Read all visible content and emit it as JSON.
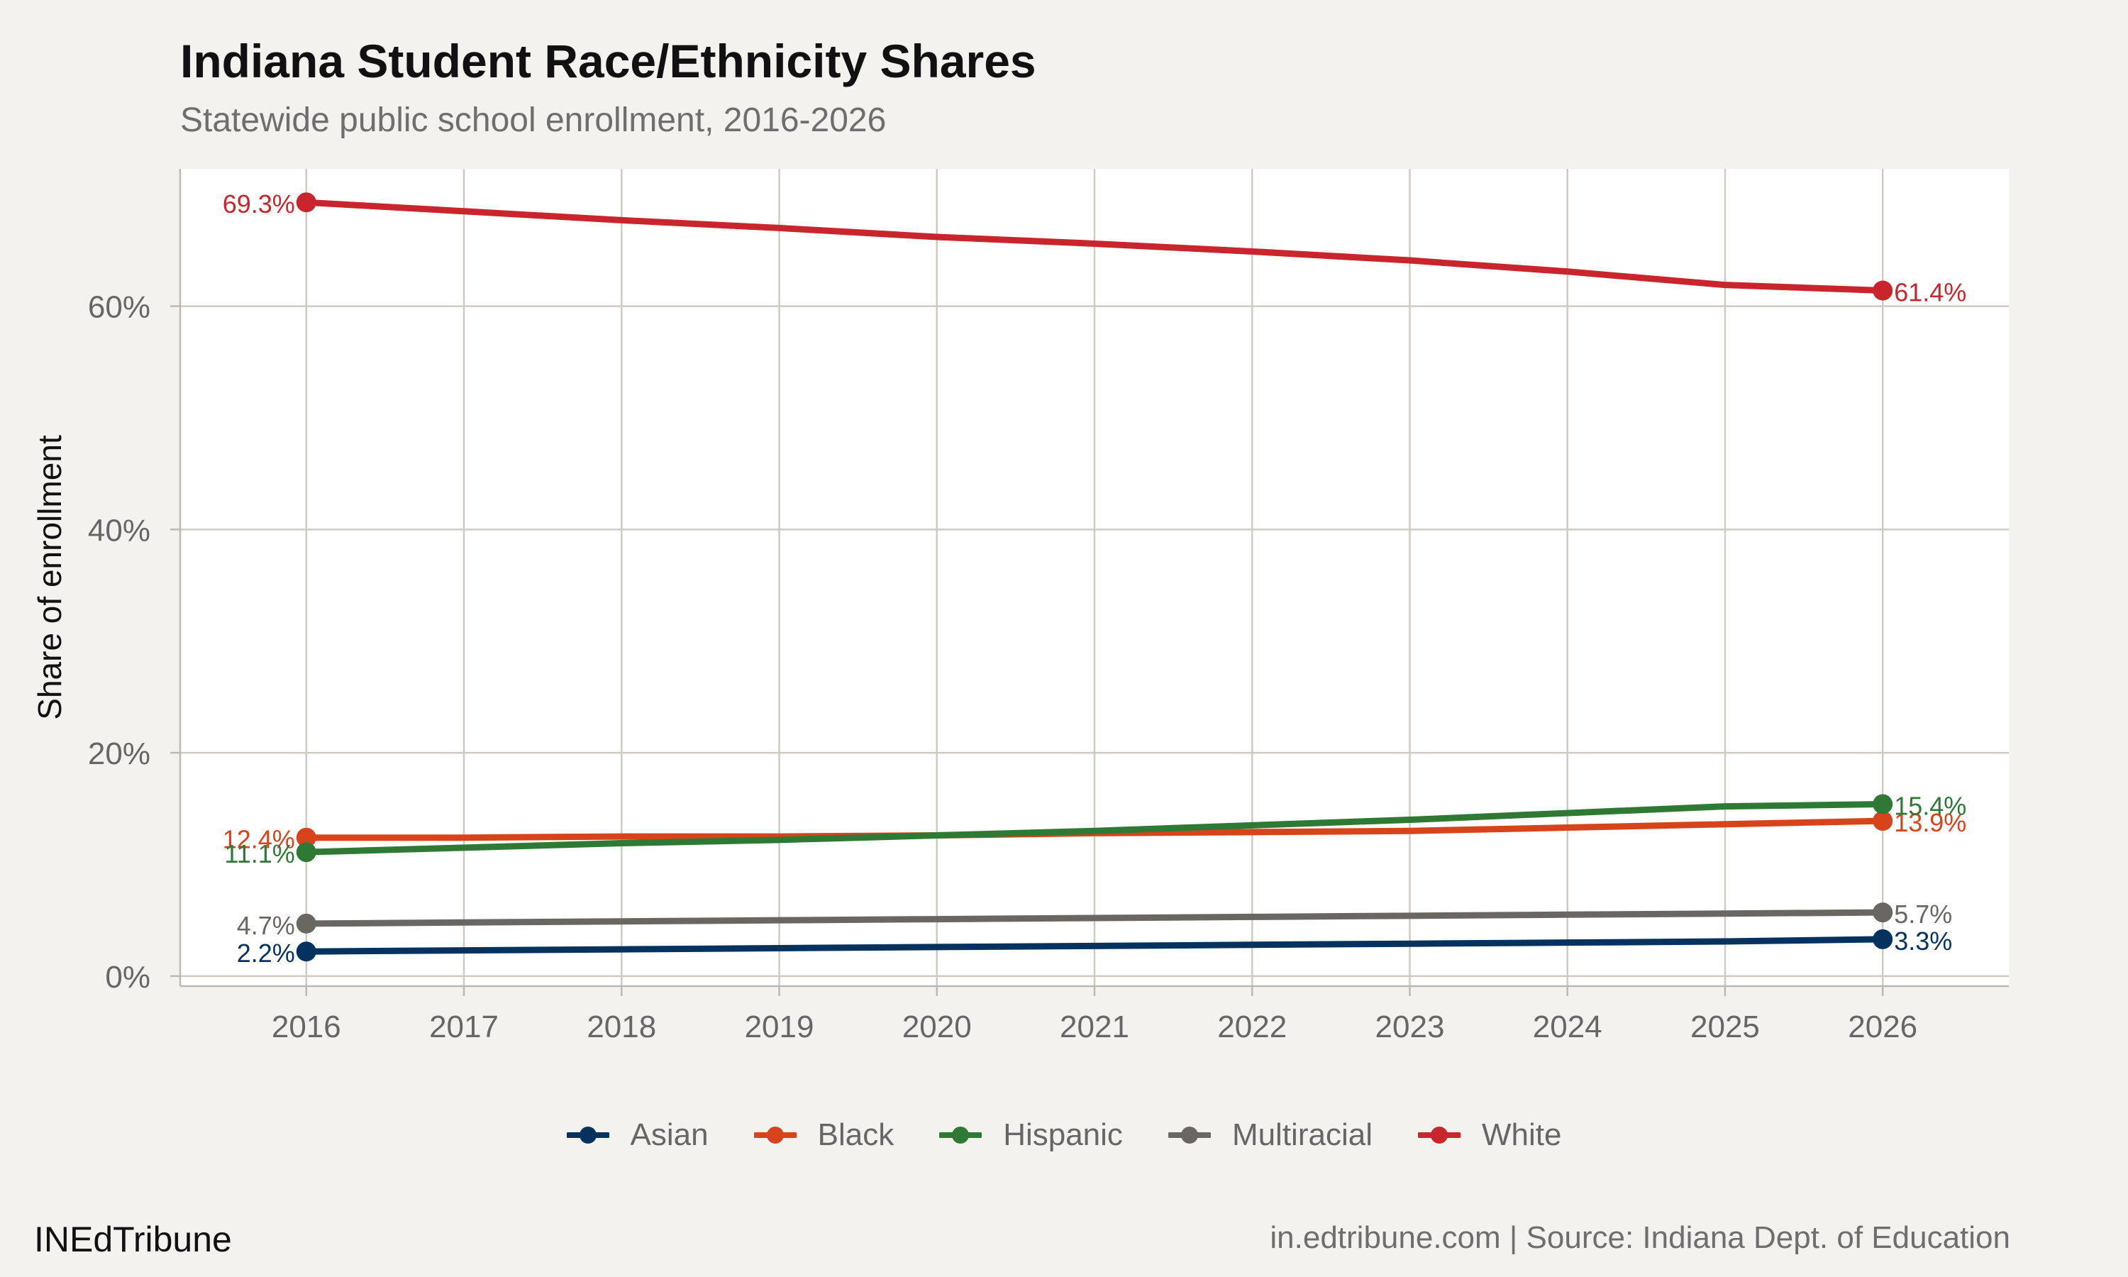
{
  "chart_data": {
    "type": "line",
    "title": "Indiana Student Race/Ethnicity Shares",
    "subtitle": "Statewide public school enrollment, 2016-2026",
    "xlabel": "",
    "ylabel": "Share of enrollment",
    "x": [
      2016,
      2017,
      2018,
      2019,
      2020,
      2021,
      2022,
      2023,
      2024,
      2025,
      2026
    ],
    "xlim": [
      2015.2,
      2026.8
    ],
    "ylim": [
      -0.9,
      72.3
    ],
    "yticks": [
      0,
      20,
      40,
      60
    ],
    "ytick_labels": [
      "0%",
      "20%",
      "40%",
      "60%"
    ],
    "grid": true,
    "legend_position": "bottom",
    "series": [
      {
        "name": "Asian",
        "color": "#06325f",
        "values": [
          2.2,
          2.3,
          2.4,
          2.5,
          2.6,
          2.7,
          2.8,
          2.9,
          3.0,
          3.1,
          3.3
        ],
        "start_label": "2.2%",
        "end_label": "3.3%"
      },
      {
        "name": "Black",
        "color": "#d7441b",
        "values": [
          12.4,
          12.4,
          12.5,
          12.5,
          12.6,
          12.8,
          12.9,
          13.0,
          13.3,
          13.6,
          13.9
        ],
        "start_label": "12.4%",
        "end_label": "13.9%"
      },
      {
        "name": "Hispanic",
        "color": "#2e7a35",
        "values": [
          11.1,
          11.5,
          11.9,
          12.2,
          12.6,
          13.0,
          13.5,
          14.0,
          14.6,
          15.2,
          15.4
        ],
        "start_label": "11.1%",
        "end_label": "15.4%"
      },
      {
        "name": "Multiracial",
        "color": "#6a6763",
        "values": [
          4.7,
          4.8,
          4.9,
          5.0,
          5.1,
          5.2,
          5.3,
          5.4,
          5.5,
          5.6,
          5.7
        ],
        "start_label": "4.7%",
        "end_label": "5.7%"
      },
      {
        "name": "White",
        "color": "#c8262c",
        "values": [
          69.3,
          68.5,
          67.7,
          67.0,
          66.2,
          65.6,
          64.9,
          64.1,
          63.1,
          61.9,
          61.4
        ],
        "start_label": "69.3%",
        "end_label": "61.4%"
      }
    ]
  },
  "footer": {
    "brand": "INEdTribune",
    "source": "in.edtribune.com | Source: Indiana Dept. of Education"
  }
}
